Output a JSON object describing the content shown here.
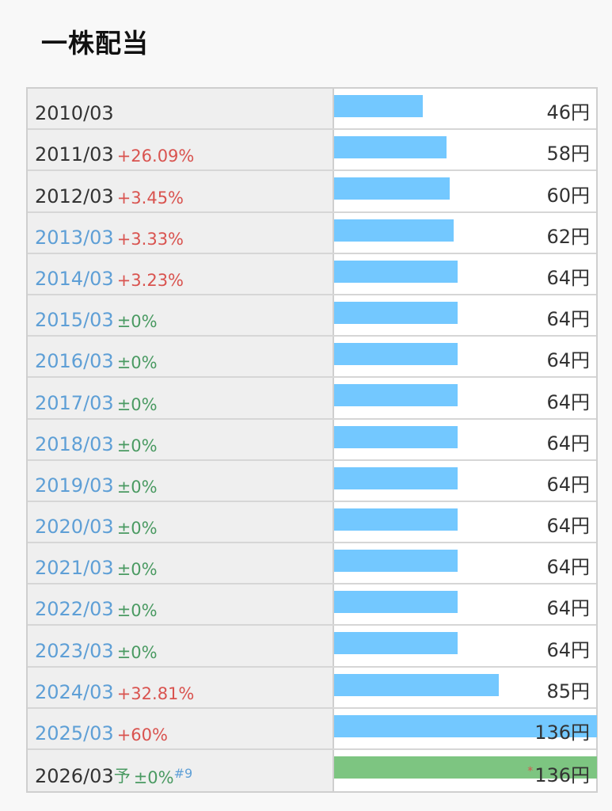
{
  "title": "一株配当",
  "colors": {
    "bar_actual": "#73c8ff",
    "bar_forecast": "#7dc581",
    "increase": "#d9534f",
    "flat": "#4a9a62",
    "link": "#5e9fd6"
  },
  "chart_data": {
    "type": "bar",
    "orientation": "horizontal",
    "title": "一株配当",
    "unit": "円",
    "xlim": [
      0,
      136
    ],
    "categories": [
      "2010/03",
      "2011/03",
      "2012/03",
      "2013/03",
      "2014/03",
      "2015/03",
      "2016/03",
      "2017/03",
      "2018/03",
      "2019/03",
      "2020/03",
      "2021/03",
      "2022/03",
      "2023/03",
      "2024/03",
      "2025/03",
      "2026/03"
    ],
    "values": [
      46,
      58,
      60,
      62,
      64,
      64,
      64,
      64,
      64,
      64,
      64,
      64,
      64,
      64,
      85,
      136,
      136
    ],
    "rows": [
      {
        "year": "2010/03",
        "change": "",
        "change_type": "",
        "value": 46,
        "value_label": "46円",
        "link": false
      },
      {
        "year": "2011/03",
        "change": "+26.09%",
        "change_type": "up",
        "value": 58,
        "value_label": "58円",
        "link": false
      },
      {
        "year": "2012/03",
        "change": "+3.45%",
        "change_type": "up",
        "value": 60,
        "value_label": "60円",
        "link": false
      },
      {
        "year": "2013/03",
        "change": "+3.33%",
        "change_type": "up",
        "value": 62,
        "value_label": "62円",
        "link": true
      },
      {
        "year": "2014/03",
        "change": "+3.23%",
        "change_type": "up",
        "value": 64,
        "value_label": "64円",
        "link": true
      },
      {
        "year": "2015/03",
        "change": "±0%",
        "change_type": "flat",
        "value": 64,
        "value_label": "64円",
        "link": true
      },
      {
        "year": "2016/03",
        "change": "±0%",
        "change_type": "flat",
        "value": 64,
        "value_label": "64円",
        "link": true
      },
      {
        "year": "2017/03",
        "change": "±0%",
        "change_type": "flat",
        "value": 64,
        "value_label": "64円",
        "link": true
      },
      {
        "year": "2018/03",
        "change": "±0%",
        "change_type": "flat",
        "value": 64,
        "value_label": "64円",
        "link": true
      },
      {
        "year": "2019/03",
        "change": "±0%",
        "change_type": "flat",
        "value": 64,
        "value_label": "64円",
        "link": true
      },
      {
        "year": "2020/03",
        "change": "±0%",
        "change_type": "flat",
        "value": 64,
        "value_label": "64円",
        "link": true
      },
      {
        "year": "2021/03",
        "change": "±0%",
        "change_type": "flat",
        "value": 64,
        "value_label": "64円",
        "link": true
      },
      {
        "year": "2022/03",
        "change": "±0%",
        "change_type": "flat",
        "value": 64,
        "value_label": "64円",
        "link": true
      },
      {
        "year": "2023/03",
        "change": "±0%",
        "change_type": "flat",
        "value": 64,
        "value_label": "64円",
        "link": true
      },
      {
        "year": "2024/03",
        "change": "+32.81%",
        "change_type": "up",
        "value": 85,
        "value_label": "85円",
        "link": true
      },
      {
        "year": "2025/03",
        "change": "+60%",
        "change_type": "up",
        "value": 136,
        "value_label": "136円",
        "link": true
      },
      {
        "year": "2026/03",
        "forecast_mark": "予",
        "change": "±0%",
        "change_type": "flat",
        "note": "#9",
        "value": 136,
        "value_label": "136円",
        "asterisk": "*",
        "link": false,
        "forecast": true
      }
    ]
  }
}
